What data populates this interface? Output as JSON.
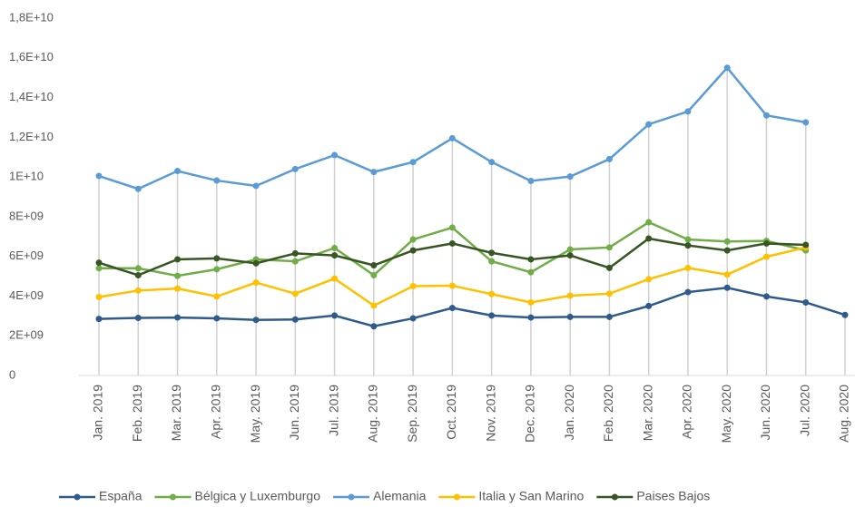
{
  "chart_data": {
    "type": "line",
    "categories": [
      "Jan. 2019",
      "Feb. 2019",
      "Mar. 2019",
      "Apr. 2019",
      "May. 2019",
      "Jun. 2019",
      "Jul. 2019",
      "Aug. 2019",
      "Sep. 2019",
      "Oct. 2019",
      "Nov. 2019",
      "Dec. 2019",
      "Jan. 2020",
      "Feb. 2020",
      "Mar. 2020",
      "Apr. 2020",
      "May. 2020",
      "Jun. 2020",
      "Jul. 2020",
      "Aug. 2020"
    ],
    "series": [
      {
        "name": "España",
        "color": "#2e5b8c",
        "values": [
          2850000000.0,
          2900000000.0,
          2920000000.0,
          2880000000.0,
          2800000000.0,
          2820000000.0,
          3020000000.0,
          2480000000.0,
          2880000000.0,
          3400000000.0,
          3020000000.0,
          2920000000.0,
          2950000000.0,
          2950000000.0,
          3500000000.0,
          4200000000.0,
          4420000000.0,
          3980000000.0,
          3680000000.0,
          3050000000.0
        ]
      },
      {
        "name": "Bélgica y Luxemburgo",
        "color": "#70ad47",
        "values": [
          5400000000.0,
          5400000000.0,
          5020000000.0,
          5350000000.0,
          5850000000.0,
          5750000000.0,
          6420000000.0,
          5050000000.0,
          6850000000.0,
          7450000000.0,
          5750000000.0,
          5200000000.0,
          6350000000.0,
          6450000000.0,
          7720000000.0,
          6850000000.0,
          6750000000.0,
          6780000000.0,
          6300000000.0,
          null
        ]
      },
      {
        "name": "Alemania",
        "color": "#5b9bd5",
        "values": [
          10050000000.0,
          9400000000.0,
          10300000000.0,
          9820000000.0,
          9550000000.0,
          10400000000.0,
          11100000000.0,
          10250000000.0,
          10750000000.0,
          11950000000.0,
          10750000000.0,
          9800000000.0,
          10020000000.0,
          10900000000.0,
          12650000000.0,
          13300000000.0,
          15500000000.0,
          13100000000.0,
          12750000000.0,
          null
        ]
      },
      {
        "name": "Italia y San Marino",
        "color": "#ffc000",
        "values": [
          3950000000.0,
          4280000000.0,
          4380000000.0,
          3980000000.0,
          4680000000.0,
          4120000000.0,
          4880000000.0,
          3520000000.0,
          4500000000.0,
          4520000000.0,
          4100000000.0,
          3680000000.0,
          4020000000.0,
          4120000000.0,
          4850000000.0,
          5420000000.0,
          5080000000.0,
          5980000000.0,
          6450000000.0,
          null
        ]
      },
      {
        "name": "Paises Bajos",
        "color": "#375623",
        "values": [
          5680000000.0,
          5050000000.0,
          5850000000.0,
          5900000000.0,
          5650000000.0,
          6150000000.0,
          6050000000.0,
          5550000000.0,
          6300000000.0,
          6650000000.0,
          6180000000.0,
          5850000000.0,
          6050000000.0,
          5420000000.0,
          6900000000.0,
          6550000000.0,
          6300000000.0,
          6650000000.0,
          6580000000.0,
          null
        ]
      }
    ],
    "ylim": [
      0,
      18000000000.0
    ],
    "yticks": [
      0,
      {
        "value": 2000000000.0,
        "label": "2E+09"
      },
      {
        "value": 4000000000.0,
        "label": "4E+09"
      },
      {
        "value": 6000000000.0,
        "label": "6E+09"
      },
      {
        "value": 8000000000.0,
        "label": "8E+09"
      },
      {
        "value": 10000000000.0,
        "label": "1E+10"
      },
      {
        "value": 12000000000.0,
        "label": "1,2E+10"
      },
      {
        "value": 14000000000.0,
        "label": "1,4E+10"
      },
      {
        "value": 16000000000.0,
        "label": "1,6E+10"
      },
      {
        "value": 18000000000.0,
        "label": "1,8E+10"
      }
    ],
    "legend": "bottom"
  }
}
